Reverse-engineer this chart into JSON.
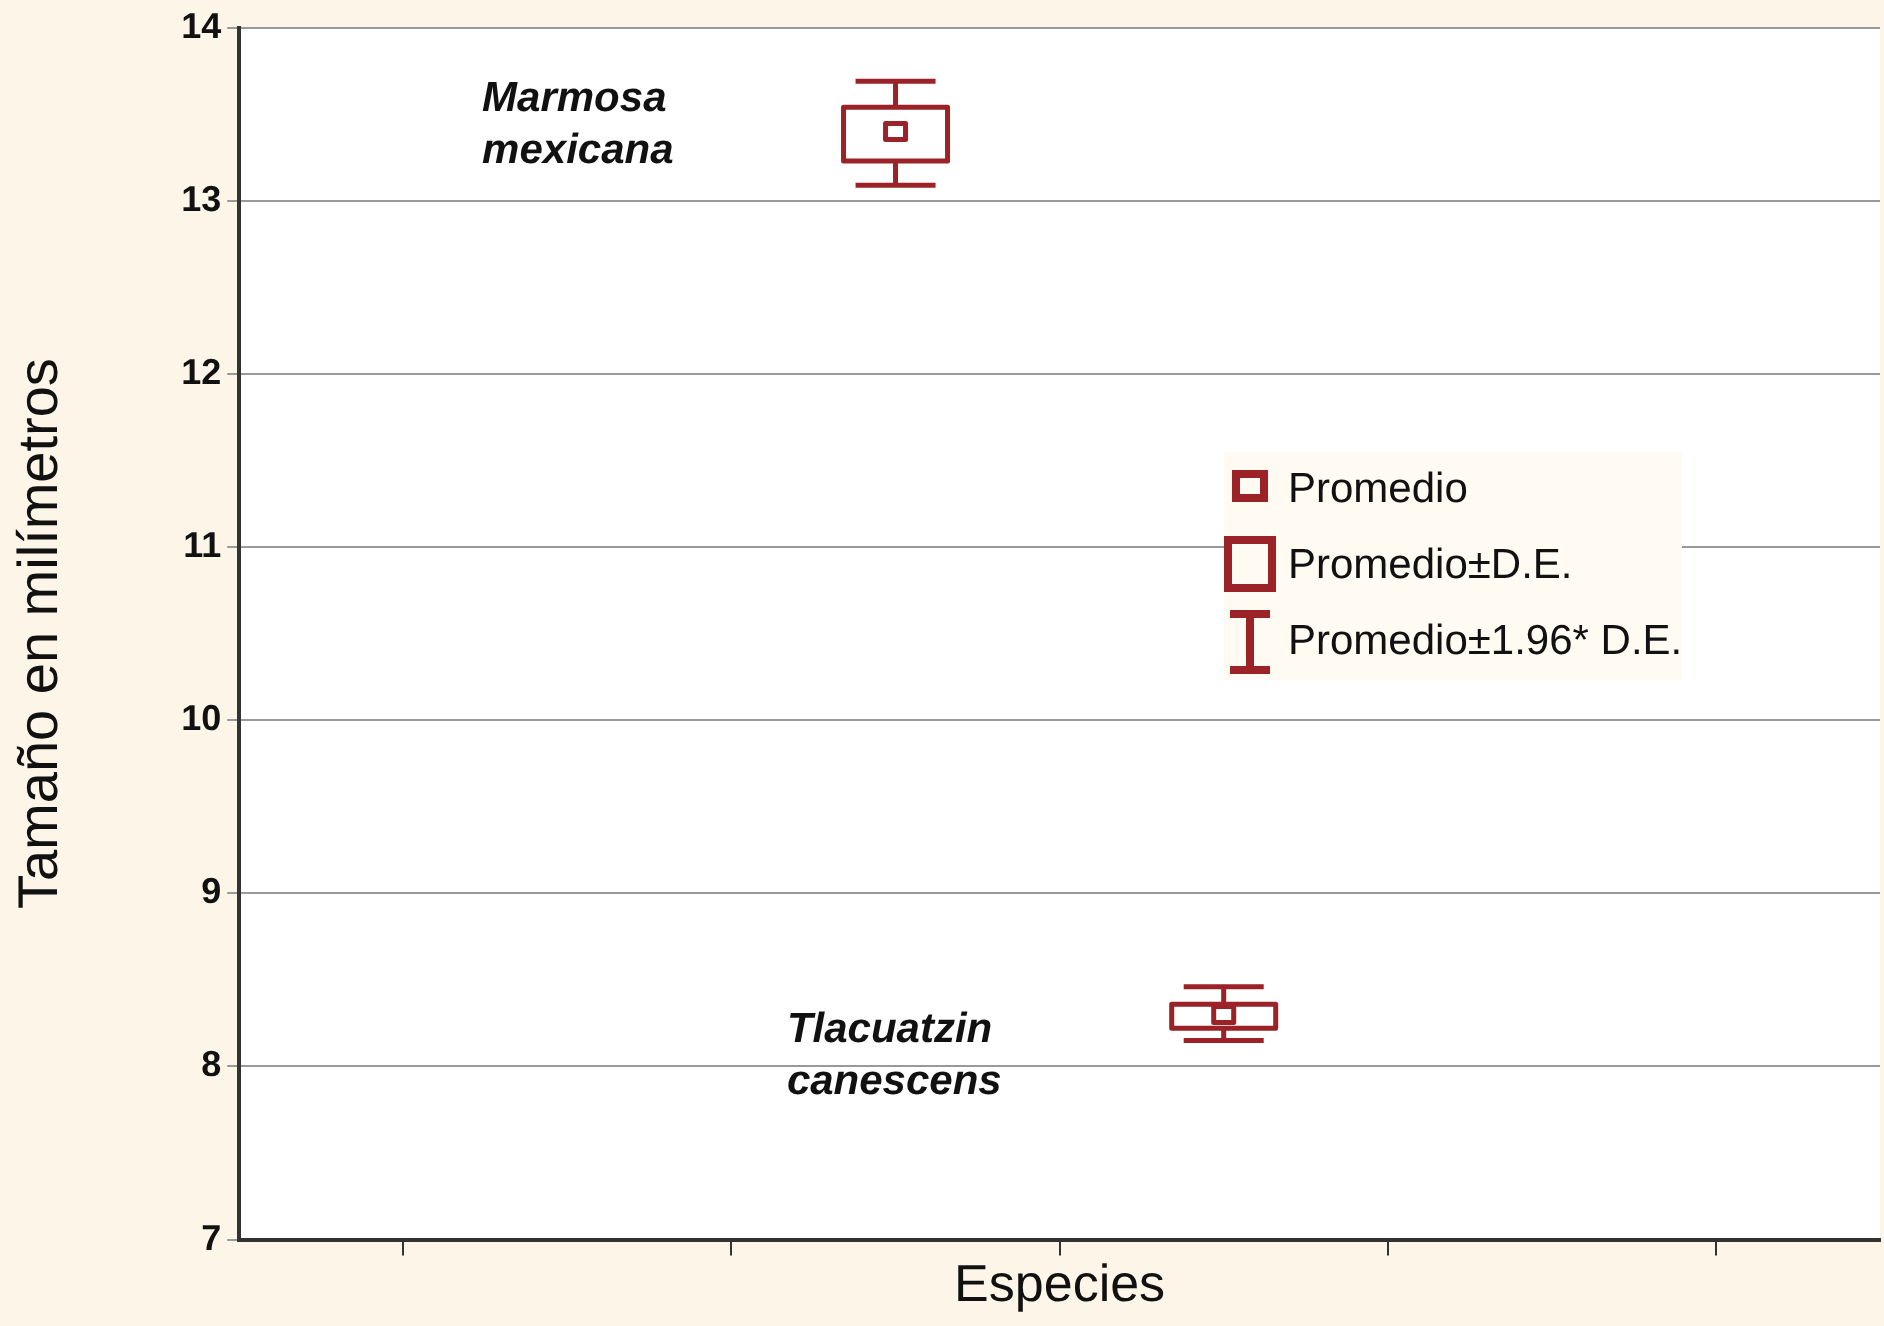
{
  "chart_data": {
    "type": "box",
    "xlabel": "Especies",
    "ylabel": "Tamaño en milímetros",
    "categories": [
      null,
      null,
      null,
      null,
      null,
      null
    ],
    "boxes": [
      null,
      null,
      {
        "low": 13.09,
        "q1": 13.23,
        "median": 13.4,
        "q3": 13.54,
        "high": 13.69
      },
      {
        "low": 8.15,
        "q1": 8.22,
        "median": 8.3,
        "q3": 8.36,
        "high": 8.46
      },
      null,
      null
    ],
    "color": "#9b2226",
    "ylim": [
      7,
      14
    ],
    "yticks": [
      7,
      8,
      9,
      10,
      11,
      12,
      13,
      14
    ],
    "grid": "y",
    "tick_labels": "y",
    "annotations": [
      "Marmosa mexicana",
      "Tlacuatzin canescens",
      "Promedio",
      "Promedio±D.E.",
      "Promedio±1.96* D.E."
    ]
  }
}
